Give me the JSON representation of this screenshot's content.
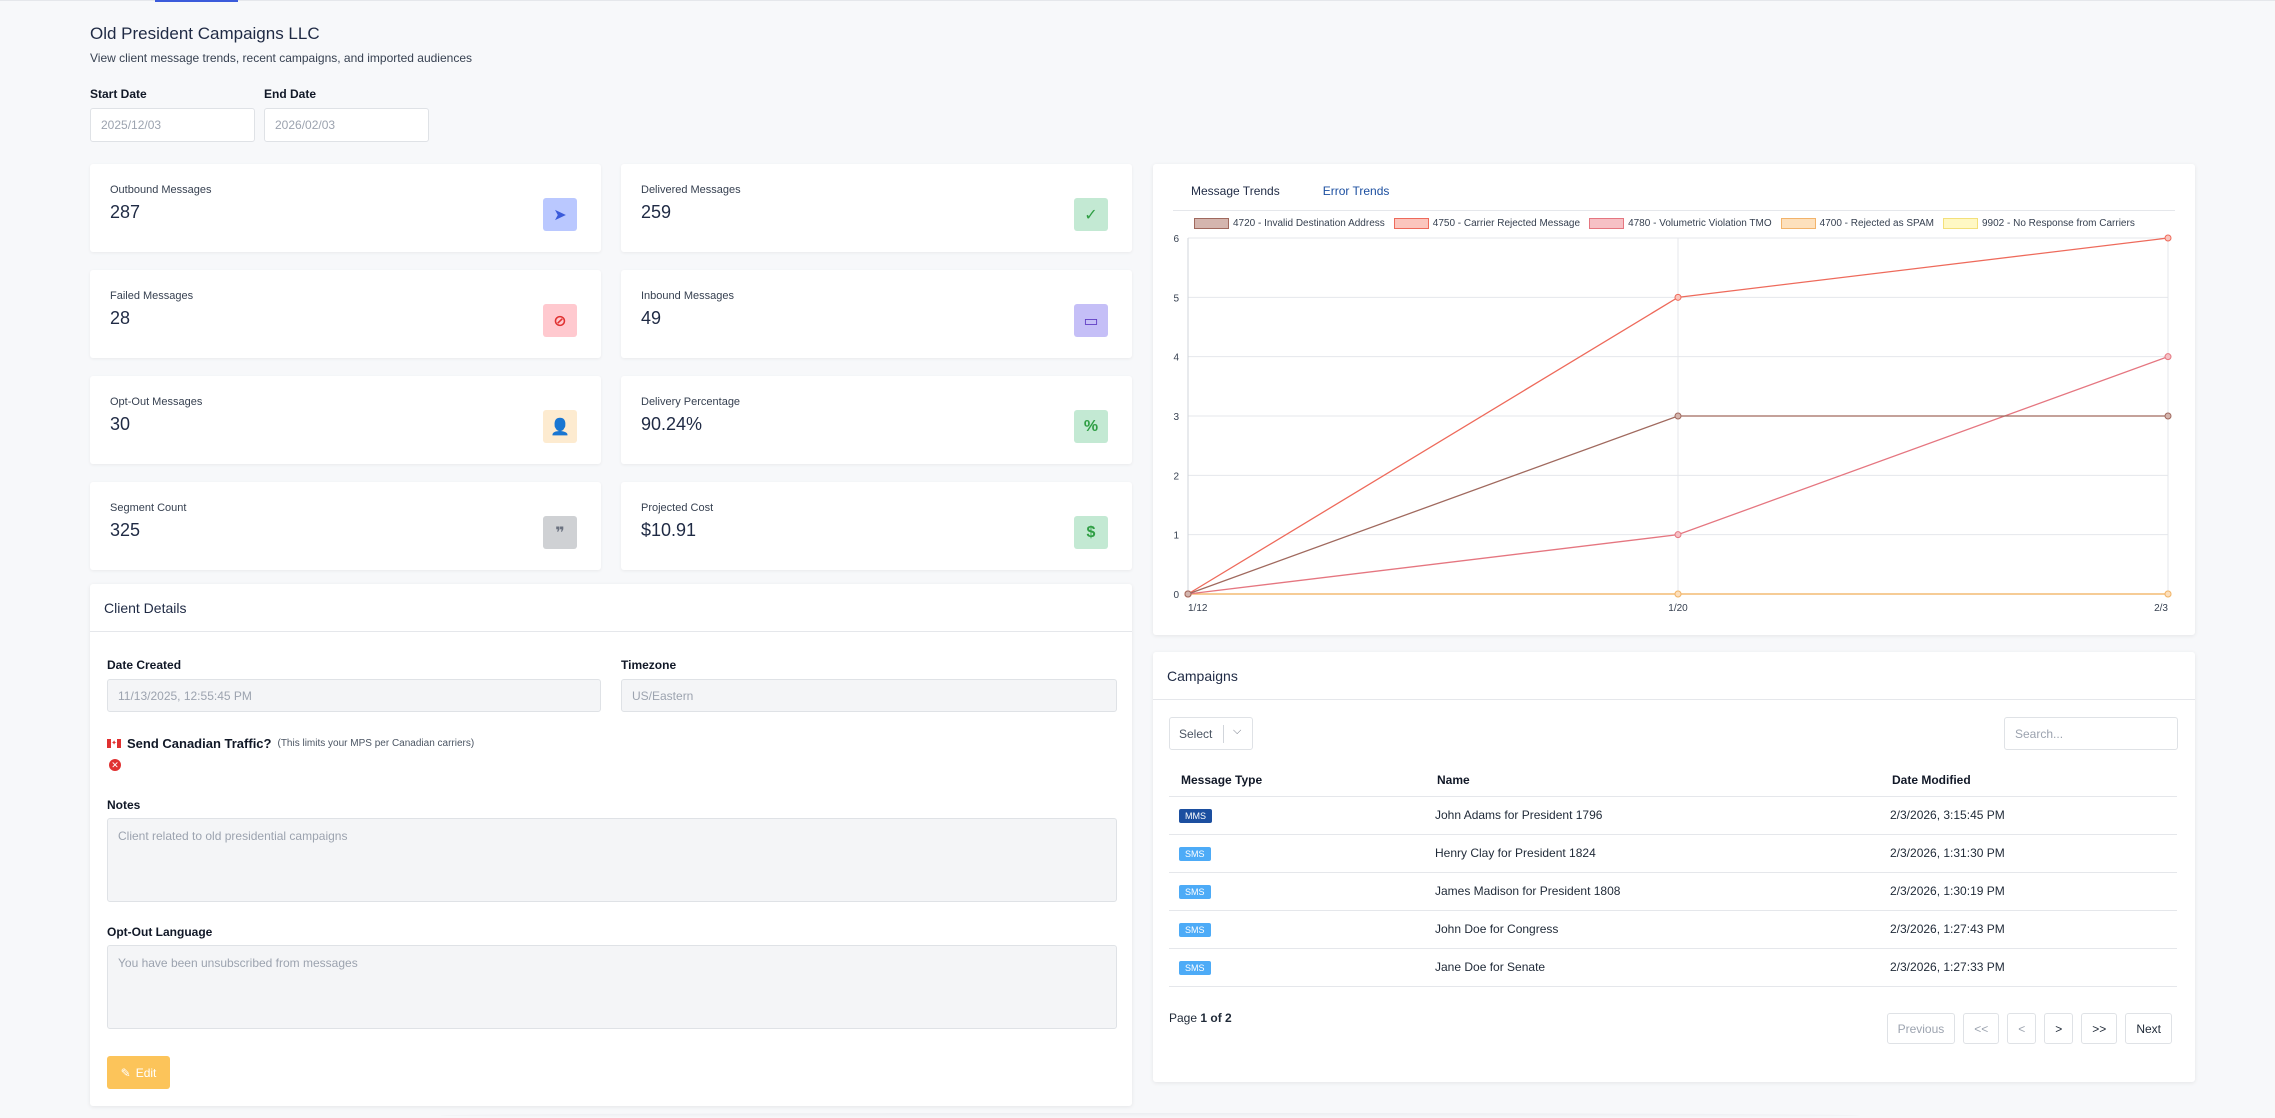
{
  "header": {
    "title": "Old President Campaigns LLC",
    "subtitle": "View client message trends, recent campaigns, and imported audiences"
  },
  "filters": {
    "start_label": "Start Date",
    "start_value": "2025/12/03",
    "end_label": "End Date",
    "end_value": "2026/02/03"
  },
  "stats": [
    {
      "label": "Outbound Messages",
      "value": "287",
      "icon": "paper-plane-icon",
      "glyph": "➤",
      "bg": "#bac8ff",
      "fg": "#3b5bdb"
    },
    {
      "label": "Delivered Messages",
      "value": "259",
      "icon": "check-icon",
      "glyph": "✓",
      "bg": "#c3e9d3",
      "fg": "#2f9e44"
    },
    {
      "label": "Failed Messages",
      "value": "28",
      "icon": "ban-icon",
      "glyph": "⊘",
      "bg": "#ffc9cf",
      "fg": "#e03131"
    },
    {
      "label": "Inbound Messages",
      "value": "49",
      "icon": "inbox-icon",
      "glyph": "▭",
      "bg": "#c5bff7",
      "fg": "#5f3dc4"
    },
    {
      "label": "Opt-Out Messages",
      "value": "30",
      "icon": "user-minus-icon",
      "glyph": "👤",
      "bg": "#fdebd0",
      "fg": "#f4b860"
    },
    {
      "label": "Delivery Percentage",
      "value": "90.24%",
      "icon": "percent-icon",
      "glyph": "%",
      "bg": "#c3e9d3",
      "fg": "#2f9e44"
    },
    {
      "label": "Segment Count",
      "value": "325",
      "icon": "quote-icon",
      "glyph": "❞",
      "bg": "#cfd1d4",
      "fg": "#6b7280"
    },
    {
      "label": "Projected Cost",
      "value": "$10.91",
      "icon": "dollar-icon",
      "glyph": "$",
      "bg": "#c3e9d3",
      "fg": "#2f9e44"
    }
  ],
  "client": {
    "title": "Client Details",
    "date_created_label": "Date Created",
    "date_created_value": "11/13/2025, 12:55:45 PM",
    "timezone_label": "Timezone",
    "timezone_value": "US/Eastern",
    "canadian_label": "Send Canadian Traffic?",
    "canadian_hint": "(This limits your MPS per Canadian carriers)",
    "notes_label": "Notes",
    "notes_value": "Client related to old presidential campaigns",
    "optout_label": "Opt-Out Language",
    "optout_value": "You have been unsubscribed from messages",
    "edit_label": "Edit"
  },
  "trends": {
    "tabs": [
      "Message Trends",
      "Error Trends"
    ],
    "active_tab": 1
  },
  "chart_data": {
    "type": "line",
    "x": [
      "1/12",
      "1/20",
      "2/3"
    ],
    "ylim": [
      0,
      6
    ],
    "yticks": [
      "0",
      "1",
      "2",
      "3",
      "4",
      "5",
      "6"
    ],
    "legend_position": "top",
    "grid": true,
    "series": [
      {
        "name": "4720 - Invalid Destination Address",
        "values": [
          0,
          3,
          3
        ],
        "color": "#a0695e",
        "fill": "#d4b5ae"
      },
      {
        "name": "4750 - Carrier Rejected Message",
        "values": [
          0,
          5,
          6
        ],
        "color": "#ee6a5b",
        "fill": "#fbc5bd"
      },
      {
        "name": "4780 - Volumetric Violation TMO",
        "values": [
          0,
          1,
          4
        ],
        "color": "#e57680",
        "fill": "#f6c0c5"
      },
      {
        "name": "4700 - Rejected as SPAM",
        "values": [
          0,
          0,
          0
        ],
        "color": "#f2b36b",
        "fill": "#fde0bc"
      },
      {
        "name": "9902 - No Response from Carriers",
        "values": [
          0,
          0,
          0
        ],
        "color": "#f3e07a",
        "fill": "#fff8c4"
      }
    ]
  },
  "campaigns": {
    "title": "Campaigns",
    "select_label": "Select",
    "search_placeholder": "Search...",
    "columns": [
      "Message Type",
      "Name",
      "Date Modified"
    ],
    "rows": [
      {
        "type": "MMS",
        "name": "John Adams for President 1796",
        "date": "2/3/2026, 3:15:45 PM"
      },
      {
        "type": "SMS",
        "name": "Henry Clay for President 1824",
        "date": "2/3/2026, 1:31:30 PM"
      },
      {
        "type": "SMS",
        "name": "James Madison for President 1808",
        "date": "2/3/2026, 1:30:19 PM"
      },
      {
        "type": "SMS",
        "name": "John Doe for Congress",
        "date": "2/3/2026, 1:27:43 PM"
      },
      {
        "type": "SMS",
        "name": "Jane Doe for Senate",
        "date": "2/3/2026, 1:27:33 PM"
      }
    ],
    "page_prefix": "Page",
    "page_current": "1 of 2",
    "pager": {
      "previous": "Previous",
      "first": "<<",
      "prev": "<",
      "next_arrow": ">",
      "last": ">>",
      "next": "Next"
    }
  }
}
